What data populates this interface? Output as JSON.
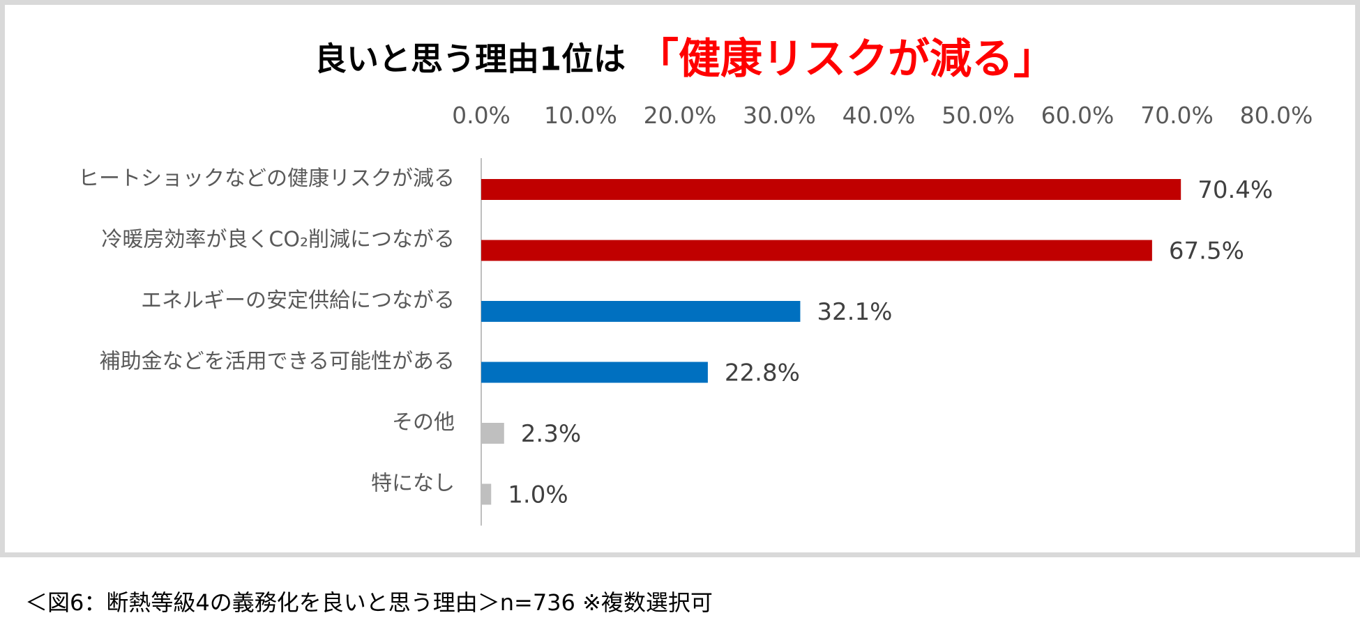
{
  "chart_data": {
    "type": "bar",
    "orientation": "horizontal",
    "title_part1": "良いと思う理由1位は",
    "title_part2": "「健康リスクが減る」",
    "categories": [
      "ヒートショックなどの健康リスクが減る",
      "冷暖房効率が良くCO₂削減につながる",
      "エネルギーの安定供給につながる",
      "補助金などを活用できる可能性がある",
      "その他",
      "特になし"
    ],
    "values": [
      70.4,
      67.5,
      32.1,
      22.8,
      2.3,
      1.0
    ],
    "value_labels": [
      "70.4%",
      "67.5%",
      "32.1%",
      "22.8%",
      "2.3%",
      "1.0%"
    ],
    "bar_colors": [
      "#c00000",
      "#c00000",
      "#0070c0",
      "#0070c0",
      "#bfbfbf",
      "#bfbfbf"
    ],
    "xlim": [
      0,
      80
    ],
    "x_ticks": [
      0,
      10,
      20,
      30,
      40,
      50,
      60,
      70,
      80
    ],
    "x_tick_labels": [
      "0.0%",
      "10.0%",
      "20.0%",
      "30.0%",
      "40.0%",
      "50.0%",
      "60.0%",
      "70.0%",
      "80.0%"
    ],
    "x_axis_position": "top",
    "grid": false,
    "xlabel": "",
    "ylabel": ""
  },
  "caption": "＜図6：断熱等級4の義務化を良いと思う理由＞n=736 ※複数選択可",
  "colors": {
    "title_accent": "#ff0000",
    "frame_border": "#d9d9d9",
    "axis_line": "#bfbfbf",
    "text_gray": "#595959"
  }
}
